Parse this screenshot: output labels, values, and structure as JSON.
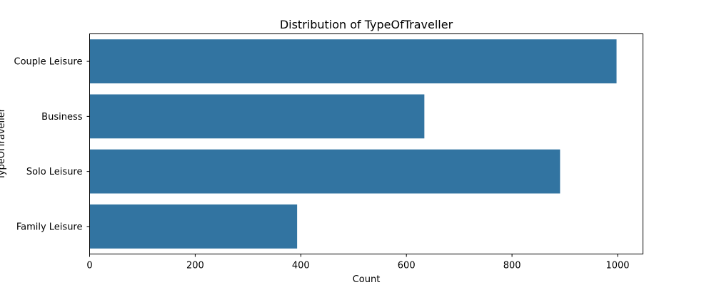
{
  "chart_data": {
    "type": "bar",
    "orientation": "horizontal",
    "title": "Distribution of TypeOfTraveller",
    "xlabel": "Count",
    "ylabel": "TypeOfTraveller",
    "categories": [
      "Couple Leisure",
      "Business",
      "Solo Leisure",
      "Family Leisure"
    ],
    "values": [
      998,
      634,
      891,
      393
    ],
    "xlim": [
      0,
      1048
    ],
    "xticks": [
      0,
      200,
      400,
      600,
      800,
      1000
    ],
    "xtick_labels": [
      "0",
      "200",
      "400",
      "600",
      "800",
      "1000"
    ],
    "bar_color": "#3274a1",
    "grid": false,
    "legend": null
  }
}
